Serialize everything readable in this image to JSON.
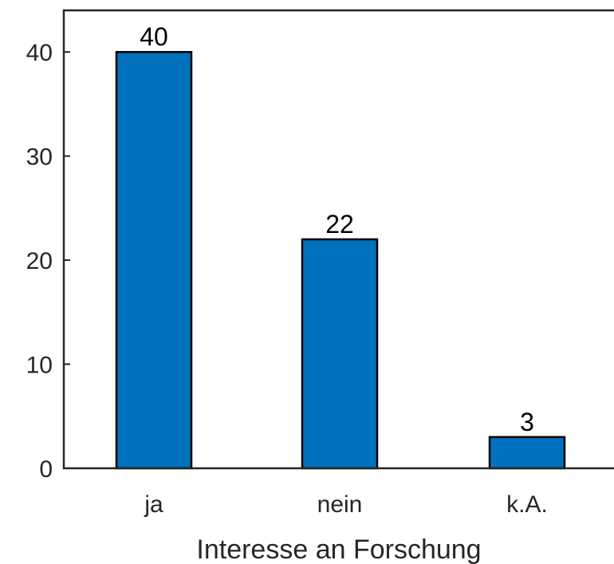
{
  "chart_data": {
    "type": "bar",
    "title": "",
    "xlabel": "Interesse an Forschung",
    "ylabel": "",
    "categories": [
      "ja",
      "nein",
      "k.A."
    ],
    "values": [
      40,
      22,
      3
    ],
    "data_labels": [
      "40",
      "22",
      "3"
    ],
    "ylim": [
      0,
      44
    ],
    "yticks": [
      0,
      10,
      20,
      30,
      40
    ],
    "ytick_labels": [
      "0",
      "10",
      "20",
      "30",
      "40"
    ],
    "grid": false,
    "legend": "none",
    "colors": {
      "bar_fill": "#0072bd",
      "bar_edge": "#000000",
      "axis": "#262626"
    }
  }
}
